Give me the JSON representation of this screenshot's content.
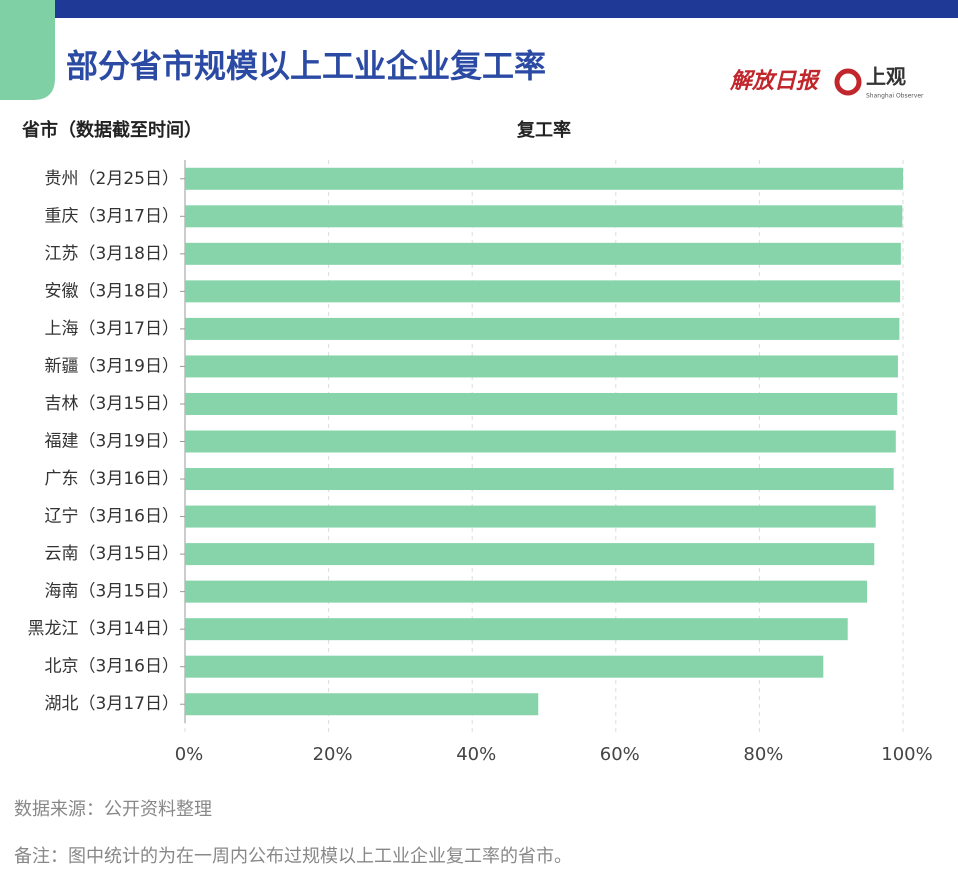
{
  "chart_data": {
    "type": "bar",
    "orientation": "horizontal",
    "title": "部分省市规模以上工业企业复工率",
    "logos": [
      "解放日报",
      "上观",
      "Shanghai Observer"
    ],
    "category_axis_label": "省市（数据截至时间）",
    "value_axis_label": "复工率",
    "categories": [
      "贵州（2月25日）",
      "重庆（3月17日）",
      "江苏（3月18日）",
      "安徽（3月18日）",
      "上海（3月17日）",
      "新疆（3月19日）",
      "吉林（3月15日）",
      "福建（3月19日）",
      "广东（3月16日）",
      "辽宁（3月16日）",
      "云南（3月15日）",
      "海南（3月15日）",
      "黑龙江（3月14日）",
      "北京（3月16日）",
      "湖北（3月17日）"
    ],
    "values": [
      100,
      99.9,
      99.7,
      99.6,
      99.5,
      99.3,
      99.2,
      99.0,
      98.7,
      96.2,
      96.0,
      95.0,
      92.3,
      88.9,
      49.2
    ],
    "color": "#87d4aa",
    "xlim": [
      0,
      100
    ],
    "xticks": [
      {
        "value": 0,
        "label": "0%"
      },
      {
        "value": 20,
        "label": "20%"
      },
      {
        "value": 40,
        "label": "40%"
      },
      {
        "value": 60,
        "label": "60%"
      },
      {
        "value": 80,
        "label": "80%"
      },
      {
        "value": 100,
        "label": "100%"
      }
    ],
    "grid": true,
    "source": "数据来源：公开资料整理",
    "note": "备注：图中统计的为在一周内公布过规模以上工业企业复工率的省市。"
  }
}
